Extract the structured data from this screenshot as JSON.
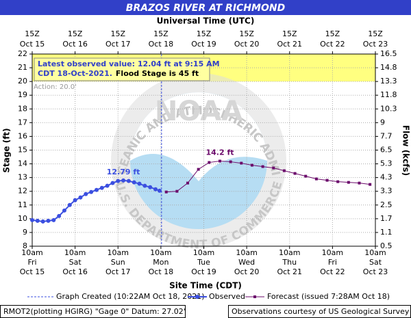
{
  "chart_data": {
    "type": "line",
    "title": "BRAZOS RIVER AT RICHMOND",
    "x2_label": "Universal Time (UTC)",
    "x_label": "Site Time (CDT)",
    "y_label": "Stage (ft)",
    "y2_label": "Flow (kcfs)",
    "xlim": [
      "2021-10-15T10:00",
      "2021-10-23T10:00"
    ],
    "xticks": [
      "2021-10-15T10:00",
      "2021-10-16T10:00",
      "2021-10-17T10:00",
      "2021-10-18T10:00",
      "2021-10-19T10:00",
      "2021-10-20T10:00",
      "2021-10-21T10:00",
      "2021-10-22T10:00",
      "2021-10-23T10:00"
    ],
    "xtick_labels": [
      [
        "10am",
        "Fri",
        "Oct 15"
      ],
      [
        "10am",
        "Sat",
        "Oct 16"
      ],
      [
        "10am",
        "Sun",
        "Oct 17"
      ],
      [
        "10am",
        "Mon",
        "Oct 18"
      ],
      [
        "10am",
        "Tue",
        "Oct 19"
      ],
      [
        "10am",
        "Wed",
        "Oct 20"
      ],
      [
        "10am",
        "Thu",
        "Oct 21"
      ],
      [
        "10am",
        "Fri",
        "Oct 22"
      ],
      [
        "10am",
        "Sat",
        "Oct 23"
      ]
    ],
    "x2tick_labels": [
      [
        "15Z",
        "Oct 15"
      ],
      [
        "15Z",
        "Oct 16"
      ],
      [
        "15Z",
        "Oct 17"
      ],
      [
        "15Z",
        "Oct 18"
      ],
      [
        "15Z",
        "Oct 19"
      ],
      [
        "15Z",
        "Oct 20"
      ],
      [
        "15Z",
        "Oct 21"
      ],
      [
        "15Z",
        "Oct 22"
      ],
      [
        "15Z",
        "Oct 23"
      ]
    ],
    "ylim": [
      8,
      22
    ],
    "yticks": [
      8,
      9,
      10,
      11,
      12,
      13,
      14,
      15,
      16,
      17,
      18,
      19,
      20,
      21,
      22
    ],
    "y2ticks": [
      0.5,
      1.1,
      1.7,
      2.5,
      3.3,
      4.3,
      5.3,
      6.5,
      7.7,
      9.0,
      10.3,
      11.8,
      13.3,
      14.8,
      16.5
    ],
    "grid": true,
    "action_stage": 20,
    "action_label": "Action: 20.0'",
    "created": "2021-10-18T10:22",
    "series": [
      {
        "name": "Observed",
        "color": "#3b4fe0",
        "marker": "circle",
        "x": [
          "2021-10-15T10:00",
          "2021-10-15T13:00",
          "2021-10-15T16:00",
          "2021-10-15T19:00",
          "2021-10-15T22:00",
          "2021-10-16T01:00",
          "2021-10-16T04:00",
          "2021-10-16T07:00",
          "2021-10-16T10:00",
          "2021-10-16T13:00",
          "2021-10-16T16:00",
          "2021-10-16T19:00",
          "2021-10-16T22:00",
          "2021-10-17T01:00",
          "2021-10-17T04:00",
          "2021-10-17T07:00",
          "2021-10-17T10:00",
          "2021-10-17T13:00",
          "2021-10-17T16:00",
          "2021-10-17T19:00",
          "2021-10-17T22:00",
          "2021-10-18T01:00",
          "2021-10-18T04:00",
          "2021-10-18T07:00",
          "2021-10-18T09:15"
        ],
        "values": [
          9.9,
          9.85,
          9.8,
          9.85,
          9.9,
          10.2,
          10.6,
          11.0,
          11.35,
          11.55,
          11.8,
          11.95,
          12.1,
          12.25,
          12.4,
          12.6,
          12.75,
          12.79,
          12.75,
          12.65,
          12.55,
          12.4,
          12.3,
          12.15,
          12.04
        ]
      },
      {
        "name": "Forecast (issued 7:28AM Oct 18)",
        "color": "#6b0a6b",
        "marker": "square",
        "x": [
          "2021-10-18T13:00",
          "2021-10-18T19:00",
          "2021-10-19T01:00",
          "2021-10-19T07:00",
          "2021-10-19T13:00",
          "2021-10-19T19:00",
          "2021-10-20T01:00",
          "2021-10-20T07:00",
          "2021-10-20T13:00",
          "2021-10-20T19:00",
          "2021-10-21T01:00",
          "2021-10-21T07:00",
          "2021-10-21T13:00",
          "2021-10-21T19:00",
          "2021-10-22T01:00",
          "2021-10-22T07:00",
          "2021-10-22T13:00",
          "2021-10-22T19:00",
          "2021-10-23T01:00",
          "2021-10-23T07:00"
        ],
        "values": [
          11.95,
          12.0,
          12.6,
          13.6,
          14.1,
          14.2,
          14.15,
          14.05,
          13.9,
          13.8,
          13.7,
          13.5,
          13.3,
          13.1,
          12.9,
          12.8,
          12.7,
          12.65,
          12.6,
          12.5
        ]
      }
    ],
    "annotations": [
      {
        "text": "12.79 ft",
        "series": 0,
        "index": 17
      },
      {
        "text": "14.2 ft",
        "series": 1,
        "index": 5
      }
    ],
    "info_lines": [
      "Latest observed value: 12.04 ft at 9:15 AM",
      "CDT 18-Oct-2021.",
      "Flood Stage is 45 ft"
    ],
    "legend_created": "Graph Created (10:22AM Oct 18, 2021)",
    "watermark": [
      "NATIONAL OCEANIC AND ATMOSPHERIC ADMINISTRATION",
      "NOAA",
      "U.S. DEPARTMENT OF COMMERCE"
    ],
    "footer_left": "RMOT2(plotting HGIRG) \"Gage 0\" Datum: 27.02'",
    "footer_right": "Observations courtesy of US Geological Survey"
  }
}
